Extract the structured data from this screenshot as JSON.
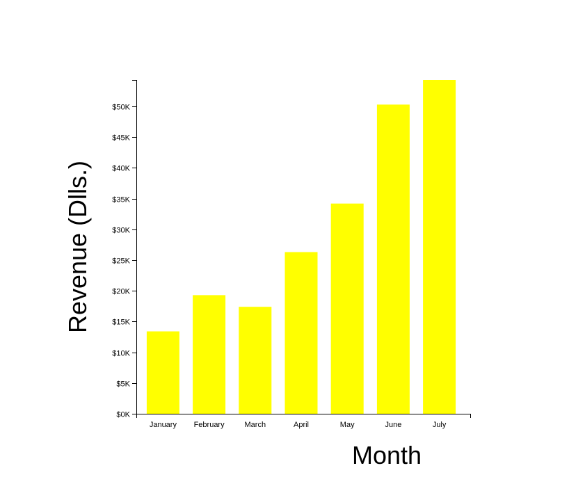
{
  "chart_data": {
    "type": "bar",
    "xlabel": "Month",
    "ylabel": "Revenue (Dlls.)",
    "categories": [
      "January",
      "February",
      "March",
      "April",
      "May",
      "June",
      "July"
    ],
    "values": [
      13400,
      19300,
      17400,
      26300,
      34200,
      50300,
      54300
    ],
    "ylim": [
      0,
      54300
    ],
    "yticks": [
      0,
      5000,
      10000,
      15000,
      20000,
      25000,
      30000,
      35000,
      40000,
      45000,
      50000
    ],
    "ytick_labels": [
      "$0K",
      "$5K",
      "$10K",
      "$15K",
      "$20K",
      "$25K",
      "$30K",
      "$35K",
      "$40K",
      "$45K",
      "$50K"
    ],
    "bar_color": "#ffff00",
    "grid": false,
    "legend": "none"
  }
}
